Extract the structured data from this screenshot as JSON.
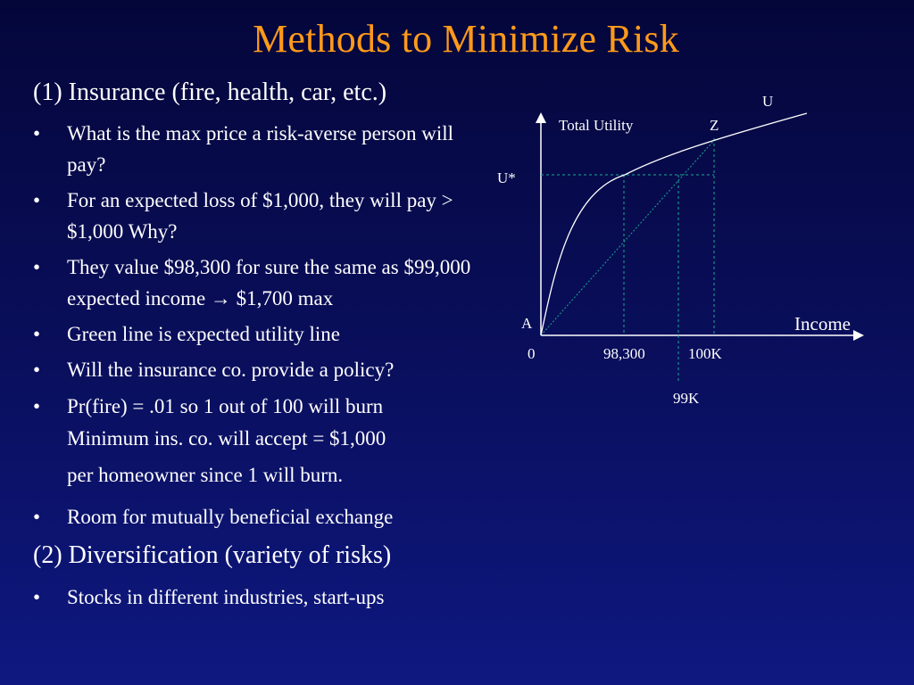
{
  "slide": {
    "title": "Methods to Minimize Risk",
    "heading1": "(1) Insurance (fire, health, car, etc.)",
    "bullets1": [
      " What is the max price a risk-averse person will pay?",
      "For an expected loss of $1,000, they will pay > $1,000    Why?",
      "They value $98,300 for sure the same as $99,000 expected income → $1,700 max",
      "Green line is expected utility line",
      "Will the insurance co. provide a policy?",
      "Pr(fire) = .01 so 1 out of 100 will burn"
    ],
    "continuation": [
      "Minimum ins. co. will accept = $1,000",
      "per homeowner since 1 will burn."
    ],
    "bullet_after": "Room for mutually beneficial exchange",
    "heading2": "(2) Diversification (variety of risks)",
    "bullets2": [
      "Stocks in different industries, start-ups"
    ],
    "bullet_symbol": "•"
  },
  "diagram": {
    "labels": {
      "curve": "U",
      "y_axis": "Total Utility",
      "point_z": "Z",
      "u_star": "U*",
      "point_a": "A",
      "x_axis": "Income",
      "x_origin": "0",
      "x_98300": "98,300",
      "x_100k": "100K",
      "x_99k": "99K"
    },
    "colors": {
      "axes": "#ffffff",
      "curve": "#ffffff",
      "expected_utility_line": "#1aa890",
      "dashed_guides": "#1aa890"
    }
  }
}
